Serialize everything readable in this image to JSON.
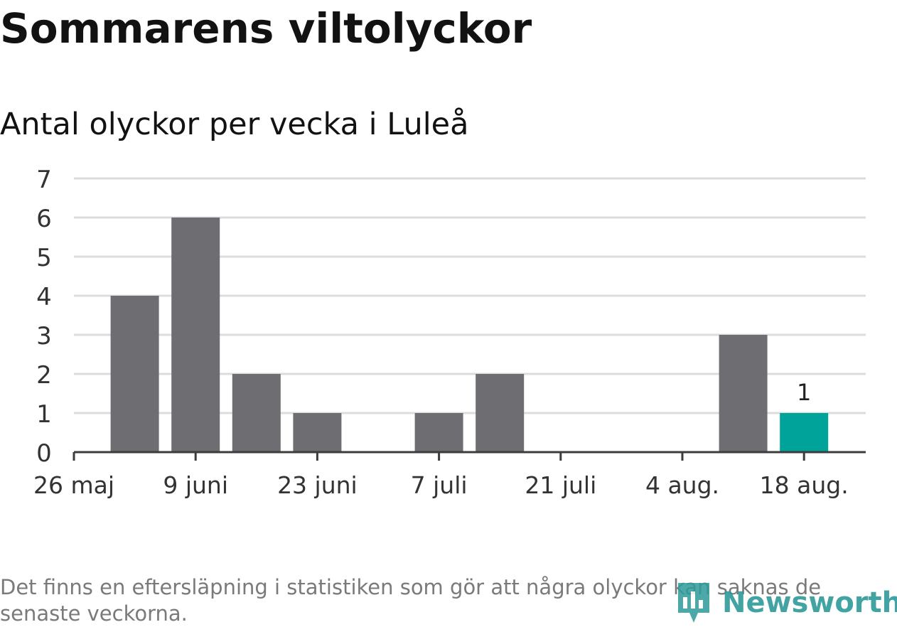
{
  "title": "Sommarens viltolyckor",
  "subtitle": "Antal olyckor per vecka i Luleå",
  "footnote": "Det finns en eftersläpning i statistiken som gör att några olyckor kan saknas de senaste veckorna.",
  "logo": {
    "text": "Newsworthy",
    "icon": "newsworthy-logo-icon",
    "color": "#2d9b9a"
  },
  "colors": {
    "bar": "#6e6d72",
    "highlight": "#00a39a",
    "grid": "#dcdcdc",
    "axis": "#3c3c3c",
    "text": "#333333"
  },
  "chart_data": {
    "type": "bar",
    "x_ticks": [
      "26 maj",
      "9 juni",
      "23 juni",
      "7 juli",
      "21 juli",
      "4 aug.",
      "18 aug."
    ],
    "y_ticks": [
      0,
      1,
      2,
      3,
      4,
      5,
      6,
      7
    ],
    "ylim": [
      0,
      7
    ],
    "grid": true,
    "bars": [
      {
        "week": "2 juni",
        "value": 4
      },
      {
        "week": "9 juni",
        "value": 6
      },
      {
        "week": "16 juni",
        "value": 2
      },
      {
        "week": "23 juni",
        "value": 1
      },
      {
        "week": "30 juni",
        "value": 0
      },
      {
        "week": "7 juli",
        "value": 1
      },
      {
        "week": "14 juli",
        "value": 2
      },
      {
        "week": "21 juli",
        "value": 0
      },
      {
        "week": "28 juli",
        "value": 0
      },
      {
        "week": "4 aug.",
        "value": 0
      },
      {
        "week": "11 aug.",
        "value": 3
      },
      {
        "week": "18 aug.",
        "value": 1,
        "highlight": true,
        "label": "1"
      }
    ]
  }
}
